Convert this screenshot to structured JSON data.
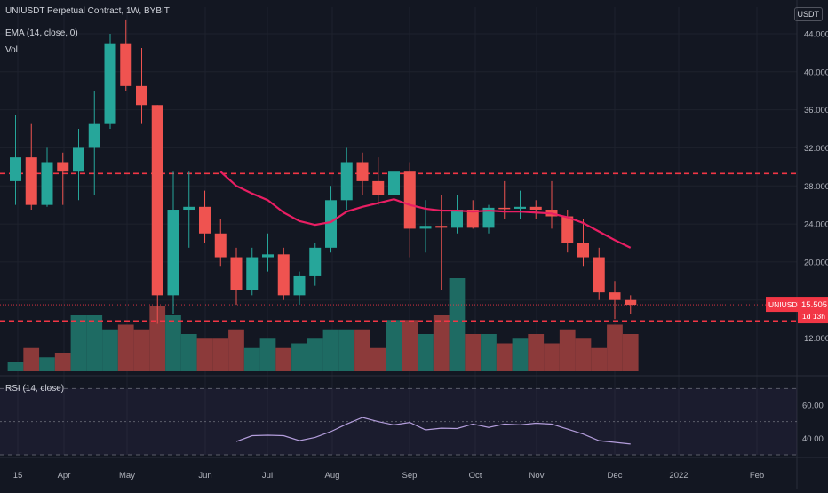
{
  "header": {
    "symbol_line": "UNIUSDT Perpetual Contract, 1W, BYBIT",
    "ema_line": "EMA (14, close, 0)",
    "vol_line": "Vol",
    "rsi_line": "RSI (14, close)",
    "currency_button": "USDT"
  },
  "price_tag": {
    "symbol": "UNIUSDT",
    "price": "15.505",
    "countdown": "1d 13h",
    "bg_color": "#f23645"
  },
  "colors": {
    "background": "#131722",
    "up": "#26a69a",
    "down": "#ef5350",
    "vol_up": "#1e6b63",
    "vol_down": "#8c3a3a",
    "ema": "#e91e63",
    "rsi": "#b39ddb",
    "hline": "#f23645"
  },
  "chart_data": {
    "type": "candlestick",
    "interval": "1W",
    "y_axis_ticks": [
      "44.000",
      "40.000",
      "36.000",
      "32.000",
      "28.000",
      "24.000",
      "20.000",
      "16.000",
      "12.000"
    ],
    "y_range": [
      8.5,
      46.8
    ],
    "x_axis_labels": [
      "15",
      "Apr",
      "May",
      "Jun",
      "Jul",
      "Aug",
      "Sep",
      "Oct",
      "Nov",
      "Dec",
      "2022",
      "Feb"
    ],
    "horizontal_lines": [
      29.3,
      13.8
    ],
    "candles": [
      {
        "o": 28.5,
        "h": 35.5,
        "l": 26.0,
        "c": 31.0
      },
      {
        "o": 31.0,
        "h": 34.5,
        "l": 25.5,
        "c": 26.0
      },
      {
        "o": 26.0,
        "h": 32.0,
        "l": 25.8,
        "c": 30.5
      },
      {
        "o": 30.5,
        "h": 31.5,
        "l": 26.0,
        "c": 29.5
      },
      {
        "o": 29.5,
        "h": 34.0,
        "l": 26.5,
        "c": 32.0
      },
      {
        "o": 32.0,
        "h": 38.0,
        "l": 27.0,
        "c": 34.5
      },
      {
        "o": 34.5,
        "h": 44.0,
        "l": 34.0,
        "c": 43.0
      },
      {
        "o": 43.0,
        "h": 45.5,
        "l": 38.0,
        "c": 38.5
      },
      {
        "o": 38.5,
        "h": 42.5,
        "l": 34.5,
        "c": 36.5
      },
      {
        "o": 36.5,
        "h": 36.5,
        "l": 13.5,
        "c": 16.5
      },
      {
        "o": 16.5,
        "h": 29.5,
        "l": 14.5,
        "c": 25.5
      },
      {
        "o": 25.5,
        "h": 29.5,
        "l": 21.5,
        "c": 25.8
      },
      {
        "o": 25.8,
        "h": 27.5,
        "l": 22.0,
        "c": 23.0
      },
      {
        "o": 23.0,
        "h": 24.5,
        "l": 19.5,
        "c": 20.5
      },
      {
        "o": 20.5,
        "h": 21.5,
        "l": 15.5,
        "c": 17.0
      },
      {
        "o": 17.0,
        "h": 21.5,
        "l": 16.5,
        "c": 20.5
      },
      {
        "o": 20.5,
        "h": 23.0,
        "l": 19.0,
        "c": 20.8
      },
      {
        "o": 20.8,
        "h": 21.5,
        "l": 16.0,
        "c": 16.5
      },
      {
        "o": 16.5,
        "h": 19.0,
        "l": 15.5,
        "c": 18.5
      },
      {
        "o": 18.5,
        "h": 22.0,
        "l": 17.5,
        "c": 21.5
      },
      {
        "o": 21.5,
        "h": 28.0,
        "l": 21.0,
        "c": 26.5
      },
      {
        "o": 26.5,
        "h": 32.0,
        "l": 25.5,
        "c": 30.5
      },
      {
        "o": 30.5,
        "h": 31.5,
        "l": 27.0,
        "c": 28.5
      },
      {
        "o": 28.5,
        "h": 31.0,
        "l": 26.0,
        "c": 27.0
      },
      {
        "o": 27.0,
        "h": 31.5,
        "l": 26.5,
        "c": 29.5
      },
      {
        "o": 29.5,
        "h": 30.5,
        "l": 20.5,
        "c": 23.5
      },
      {
        "o": 23.5,
        "h": 26.5,
        "l": 21.0,
        "c": 23.8
      },
      {
        "o": 23.8,
        "h": 27.0,
        "l": 17.0,
        "c": 23.6
      },
      {
        "o": 23.6,
        "h": 27.0,
        "l": 23.0,
        "c": 25.5
      },
      {
        "o": 25.5,
        "h": 26.5,
        "l": 23.5,
        "c": 23.6
      },
      {
        "o": 23.6,
        "h": 26.0,
        "l": 23.0,
        "c": 25.7
      },
      {
        "o": 25.7,
        "h": 28.5,
        "l": 24.5,
        "c": 25.6
      },
      {
        "o": 25.6,
        "h": 27.5,
        "l": 24.5,
        "c": 25.8
      },
      {
        "o": 25.8,
        "h": 26.5,
        "l": 24.5,
        "c": 25.5
      },
      {
        "o": 25.5,
        "h": 28.5,
        "l": 23.5,
        "c": 24.8
      },
      {
        "o": 24.8,
        "h": 25.5,
        "l": 21.0,
        "c": 22.0
      },
      {
        "o": 22.0,
        "h": 24.5,
        "l": 19.5,
        "c": 20.5
      },
      {
        "o": 20.5,
        "h": 21.5,
        "l": 16.0,
        "c": 16.8
      },
      {
        "o": 16.8,
        "h": 18.0,
        "l": 14.0,
        "c": 16.0
      },
      {
        "o": 16.0,
        "h": 16.5,
        "l": 14.5,
        "c": 15.5
      }
    ],
    "volume": [
      0.1,
      0.25,
      0.15,
      0.2,
      0.6,
      0.6,
      0.45,
      0.5,
      0.45,
      0.7,
      0.6,
      0.4,
      0.35,
      0.35,
      0.45,
      0.25,
      0.35,
      0.25,
      0.3,
      0.35,
      0.45,
      0.45,
      0.45,
      0.25,
      0.55,
      0.55,
      0.4,
      0.6,
      1.0,
      0.4,
      0.4,
      0.3,
      0.35,
      0.4,
      0.3,
      0.45,
      0.35,
      0.25,
      0.5,
      0.4
    ],
    "ema": [
      null,
      null,
      null,
      null,
      null,
      null,
      null,
      null,
      null,
      null,
      null,
      null,
      null,
      29.5,
      28.0,
      27.2,
      26.5,
      25.2,
      24.3,
      23.9,
      24.2,
      25.3,
      25.8,
      26.2,
      26.6,
      26.0,
      25.6,
      25.4,
      25.4,
      25.3,
      25.4,
      25.3,
      25.3,
      25.2,
      25.1,
      24.7,
      24.1,
      23.2,
      22.3,
      21.5
    ],
    "rsi": {
      "ticks": [
        "60.00",
        "40.00"
      ],
      "range": [
        30,
        75
      ],
      "bands": [
        70,
        50,
        30
      ],
      "values": [
        null,
        null,
        null,
        null,
        null,
        null,
        null,
        null,
        null,
        null,
        null,
        null,
        null,
        null,
        38.0,
        41.5,
        41.8,
        41.5,
        38.5,
        40.5,
        44.0,
        48.5,
        52.5,
        50.0,
        48.0,
        49.5,
        45.0,
        46.0,
        45.8,
        48.5,
        46.5,
        48.5,
        48.0,
        49.0,
        48.5,
        45.5,
        42.5,
        38.5,
        37.5,
        36.5
      ]
    }
  }
}
